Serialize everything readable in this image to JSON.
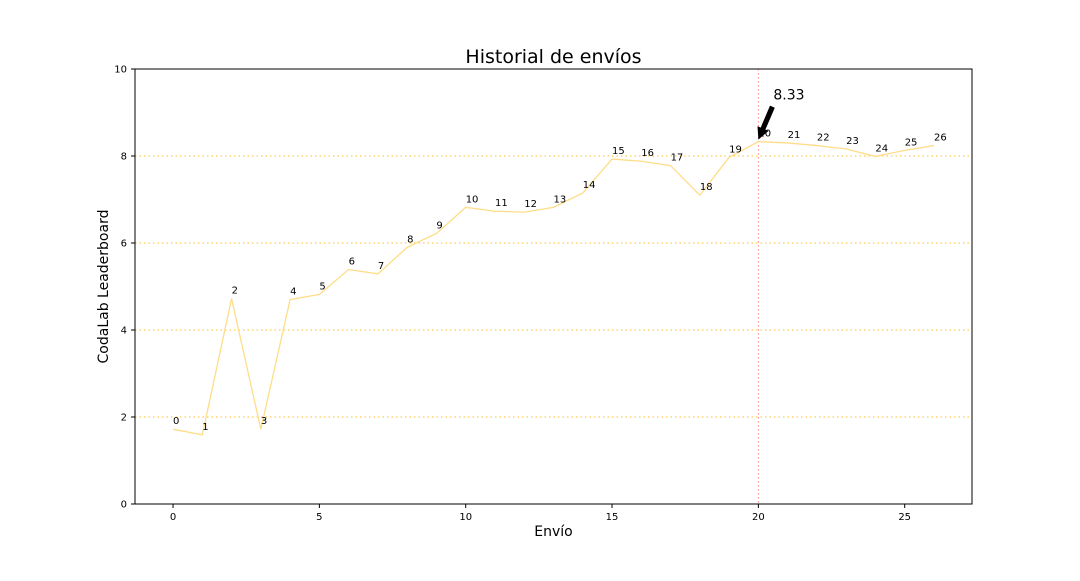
{
  "chart_data": {
    "type": "line",
    "title": "Historial de envíos",
    "xlabel": "Envío",
    "ylabel": "CodaLab Leaderboard",
    "xlim": [
      -1.3,
      27.3
    ],
    "ylim": [
      0,
      10
    ],
    "xticks": [
      0,
      5,
      10,
      15,
      20,
      25
    ],
    "yticks": [
      0,
      2,
      4,
      6,
      8,
      10
    ],
    "grid": {
      "axis": "y",
      "style": "dotted",
      "color": "#ffcc55"
    },
    "line_color": "#ffdd88",
    "series": [
      {
        "x": [
          0,
          1,
          2,
          3,
          4,
          5,
          6,
          7,
          8,
          9,
          10,
          11,
          12,
          13,
          14,
          15,
          16,
          17,
          18,
          19,
          20,
          21,
          22,
          23,
          24,
          25,
          26
        ],
        "values": [
          1.72,
          1.59,
          4.72,
          1.72,
          4.7,
          4.82,
          5.39,
          5.29,
          5.9,
          6.22,
          6.82,
          6.73,
          6.71,
          6.82,
          7.15,
          7.93,
          7.88,
          7.78,
          7.1,
          7.97,
          8.33,
          8.3,
          8.24,
          8.16,
          7.99,
          8.13,
          8.24
        ],
        "point_labels": [
          "0",
          "1",
          "2",
          "3",
          "4",
          "5",
          "6",
          "7",
          "8",
          "9",
          "10",
          "11",
          "12",
          "13",
          "14",
          "15",
          "16",
          "17",
          "18",
          "19",
          "20",
          "21",
          "22",
          "23",
          "24",
          "25",
          "26"
        ]
      }
    ],
    "annotation": {
      "text": "8.33",
      "x": 20,
      "y": 8.33
    },
    "vline": {
      "x": 20,
      "color": "#ff8888",
      "style": "dotted"
    }
  }
}
